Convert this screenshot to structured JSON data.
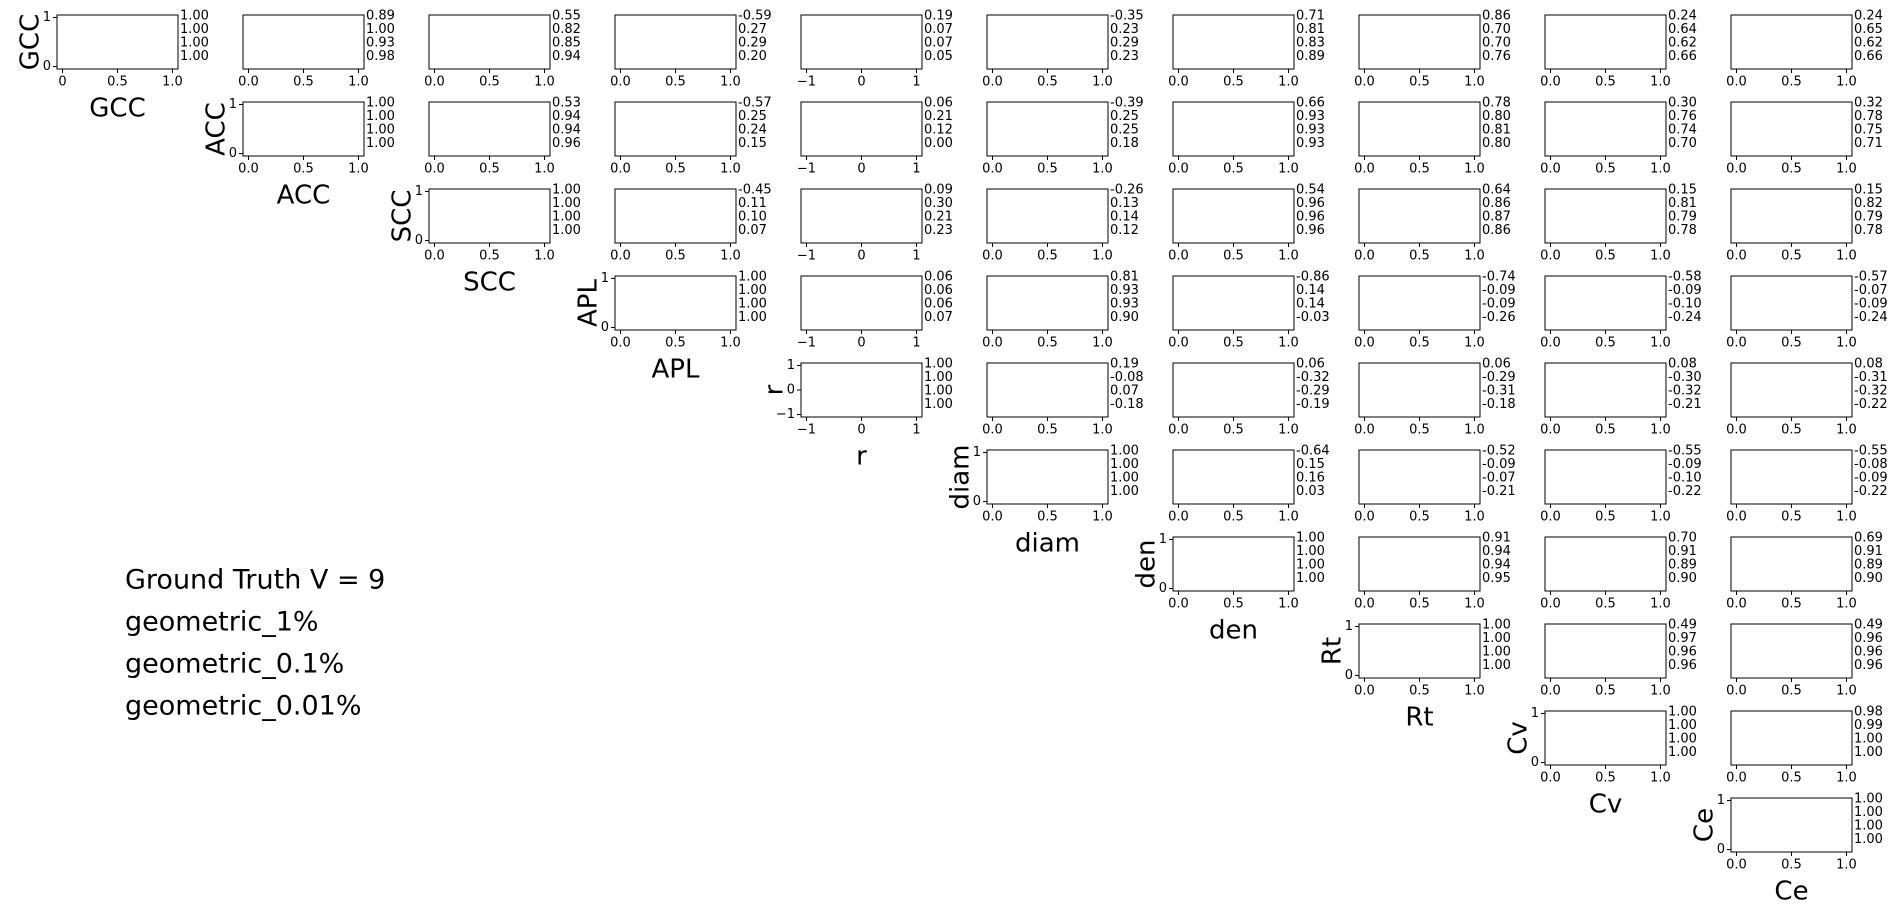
{
  "chart_data": {
    "type": "scatter_matrix",
    "series": [
      {
        "name": "Ground Truth V = 9",
        "color": "#0000ff"
      },
      {
        "name": "geometric_1%",
        "color": "#ff0000"
      },
      {
        "name": "geometric_0.1%",
        "color": "#008000"
      },
      {
        "name": "geometric_0.01%",
        "color": "#00bfbf"
      }
    ],
    "variables": [
      {
        "name": "GCC",
        "lim": [
          -0.05,
          1.05
        ],
        "xticks": [
          0,
          0.5,
          {
            "value": 1,
            "label": "1.0"
          }
        ],
        "yticks": [
          0,
          1
        ],
        "correlations": [
          {
            "values": [
              1,
              1,
              1,
              1
            ],
            "value_labels": [
              "1.00",
              "1.00",
              "1.00",
              "1.00"
            ]
          },
          {
            "values": [
              0.89,
              1,
              0.93,
              0.98
            ],
            "value_labels": [
              "0.89",
              "1.00",
              "0.93",
              "0.98"
            ]
          },
          {
            "values": [
              0.55,
              0.82,
              0.85,
              0.94
            ],
            "value_labels": [
              "0.55",
              "0.82",
              "0.85",
              "0.94"
            ]
          },
          {
            "values": [
              -0.59,
              0.27,
              0.29,
              0.2
            ],
            "value_labels": [
              "-0.59",
              "0.27",
              "0.29",
              "0.20"
            ]
          },
          {
            "values": [
              0.19,
              0.07,
              0.07,
              0.05
            ],
            "value_labels": [
              "0.19",
              "0.07",
              "0.07",
              "0.05"
            ]
          },
          {
            "values": [
              -0.35,
              0.23,
              0.29,
              0.23
            ],
            "value_labels": [
              "-0.35",
              "0.23",
              "0.29",
              "0.23"
            ]
          },
          {
            "values": [
              0.71,
              0.81,
              0.83,
              0.89
            ],
            "value_labels": [
              "0.71",
              "0.81",
              "0.83",
              "0.89"
            ]
          },
          {
            "values": [
              0.86,
              0.7,
              0.7,
              0.76
            ],
            "value_labels": [
              "0.86",
              "0.70",
              "0.70",
              "0.76"
            ]
          },
          {
            "values": [
              0.24,
              0.64,
              0.62,
              0.66
            ],
            "value_labels": [
              "0.24",
              "0.64",
              "0.62",
              "0.66"
            ]
          },
          {
            "values": [
              0.24,
              0.65,
              0.62,
              0.66
            ],
            "value_labels": [
              "0.24",
              "0.65",
              "0.62",
              "0.66"
            ]
          }
        ]
      },
      {
        "name": "ACC",
        "lim": [
          -0.05,
          1.05
        ],
        "xticks": [
          {
            "value": 0,
            "label": "0.0"
          },
          0.5,
          {
            "value": 1,
            "label": "1.0"
          }
        ],
        "yticks": [
          0,
          1
        ],
        "correlations": [
          {
            "values": [
              1,
              1,
              1,
              1
            ],
            "value_labels": [
              "1.00",
              "1.00",
              "1.00",
              "1.00"
            ]
          },
          {
            "values": [
              0.53,
              0.94,
              0.94,
              0.96
            ],
            "value_labels": [
              "0.53",
              "0.94",
              "0.94",
              "0.96"
            ]
          },
          {
            "values": [
              -0.57,
              0.25,
              0.24,
              0.15
            ],
            "value_labels": [
              "-0.57",
              "0.25",
              "0.24",
              "0.15"
            ]
          },
          {
            "values": [
              0.06,
              0.21,
              0.12,
              0
            ],
            "value_labels": [
              "0.06",
              "0.21",
              "0.12",
              "0.00"
            ]
          },
          {
            "values": [
              -0.39,
              0.25,
              0.25,
              0.18
            ],
            "value_labels": [
              "-0.39",
              "0.25",
              "0.25",
              "0.18"
            ]
          },
          {
            "values": [
              0.66,
              0.93,
              0.93,
              0.93
            ],
            "value_labels": [
              "0.66",
              "0.93",
              "0.93",
              "0.93"
            ]
          },
          {
            "values": [
              0.78,
              0.8,
              0.81,
              0.8
            ],
            "value_labels": [
              "0.78",
              "0.80",
              "0.81",
              "0.80"
            ]
          },
          {
            "values": [
              0.3,
              0.76,
              0.74,
              0.7
            ],
            "value_labels": [
              "0.30",
              "0.76",
              "0.74",
              "0.70"
            ]
          },
          {
            "values": [
              0.32,
              0.78,
              0.75,
              0.71
            ],
            "value_labels": [
              "0.32",
              "0.78",
              "0.75",
              "0.71"
            ]
          }
        ]
      },
      {
        "name": "SCC",
        "lim": [
          -0.05,
          1.05
        ],
        "xticks": [
          {
            "value": 0,
            "label": "0.0"
          },
          0.5,
          {
            "value": 1,
            "label": "1.0"
          }
        ],
        "yticks": [
          0,
          1
        ],
        "correlations": [
          {
            "values": [
              1,
              1,
              1,
              1
            ],
            "value_labels": [
              "1.00",
              "1.00",
              "1.00",
              "1.00"
            ]
          },
          {
            "values": [
              -0.45,
              0.11,
              0.1,
              0.07
            ],
            "value_labels": [
              "-0.45",
              "0.11",
              "0.10",
              "0.07"
            ]
          },
          {
            "values": [
              0.09,
              0.3,
              0.21,
              0.23
            ],
            "value_labels": [
              "0.09",
              "0.30",
              "0.21",
              "0.23"
            ]
          },
          {
            "values": [
              -0.26,
              0.13,
              0.14,
              0.12
            ],
            "value_labels": [
              "-0.26",
              "0.13",
              "0.14",
              "0.12"
            ]
          },
          {
            "values": [
              0.54,
              0.96,
              0.96,
              0.96
            ],
            "value_labels": [
              "0.54",
              "0.96",
              "0.96",
              "0.96"
            ]
          },
          {
            "values": [
              0.64,
              0.86,
              0.87,
              0.86
            ],
            "value_labels": [
              "0.64",
              "0.86",
              "0.87",
              "0.86"
            ]
          },
          {
            "values": [
              0.15,
              0.81,
              0.79,
              0.78
            ],
            "value_labels": [
              "0.15",
              "0.81",
              "0.79",
              "0.78"
            ]
          },
          {
            "values": [
              0.15,
              0.82,
              0.79,
              0.78
            ],
            "value_labels": [
              "0.15",
              "0.82",
              "0.79",
              "0.78"
            ]
          }
        ]
      },
      {
        "name": "APL",
        "lim": [
          -0.05,
          1.05
        ],
        "xticks": [
          {
            "value": 0,
            "label": "0.0"
          },
          0.5,
          {
            "value": 1,
            "label": "1.0"
          }
        ],
        "yticks": [
          0,
          1
        ],
        "correlations": [
          {
            "values": [
              1,
              1,
              1,
              1
            ],
            "value_labels": [
              "1.00",
              "1.00",
              "1.00",
              "1.00"
            ]
          },
          {
            "values": [
              0.06,
              0.06,
              0.06,
              0.07
            ],
            "value_labels": [
              "0.06",
              "0.06",
              "0.06",
              "0.07"
            ]
          },
          {
            "values": [
              0.81,
              0.93,
              0.93,
              0.9
            ],
            "value_labels": [
              "0.81",
              "0.93",
              "0.93",
              "0.90"
            ]
          },
          {
            "values": [
              -0.86,
              0.14,
              0.14,
              -0.03
            ],
            "value_labels": [
              "-0.86",
              "0.14",
              "0.14",
              "-0.03"
            ]
          },
          {
            "values": [
              -0.74,
              -0.09,
              -0.09,
              -0.26
            ],
            "value_labels": [
              "-0.74",
              "-0.09",
              "-0.09",
              "-0.26"
            ]
          },
          {
            "values": [
              -0.58,
              -0.09,
              -0.1,
              -0.24
            ],
            "value_labels": [
              "-0.58",
              "-0.09",
              "-0.10",
              "-0.24"
            ]
          },
          {
            "values": [
              -0.57,
              -0.07,
              -0.09,
              -0.24
            ],
            "value_labels": [
              "-0.57",
              "-0.07",
              "-0.09",
              "-0.24"
            ]
          }
        ]
      },
      {
        "name": "r",
        "lim": [
          -1.1,
          1.1
        ],
        "xticks": [
          {
            "value": -1,
            "label": "−1"
          },
          0,
          1
        ],
        "yticks": [
          {
            "value": -1,
            "label": "−1"
          },
          0,
          1
        ],
        "correlations": [
          {
            "values": [
              1,
              1,
              1,
              1
            ],
            "value_labels": [
              "1.00",
              "1.00",
              "1.00",
              "1.00"
            ]
          },
          {
            "values": [
              0.19,
              -0.08,
              0.07,
              -0.18
            ],
            "value_labels": [
              "0.19",
              "-0.08",
              "0.07",
              "-0.18"
            ]
          },
          {
            "values": [
              0.06,
              -0.32,
              -0.29,
              -0.19
            ],
            "value_labels": [
              "0.06",
              "-0.32",
              "-0.29",
              "-0.19"
            ]
          },
          {
            "values": [
              0.06,
              -0.29,
              -0.31,
              -0.18
            ],
            "value_labels": [
              "0.06",
              "-0.29",
              "-0.31",
              "-0.18"
            ]
          },
          {
            "values": [
              0.08,
              -0.3,
              -0.32,
              -0.21
            ],
            "value_labels": [
              "0.08",
              "-0.30",
              "-0.32",
              "-0.21"
            ]
          },
          {
            "values": [
              0.08,
              -0.31,
              -0.32,
              -0.22
            ],
            "value_labels": [
              "0.08",
              "-0.31",
              "-0.32",
              "-0.22"
            ]
          }
        ]
      },
      {
        "name": "diam",
        "lim": [
          -0.05,
          1.05
        ],
        "xticks": [
          {
            "value": 0,
            "label": "0.0"
          },
          0.5,
          {
            "value": 1,
            "label": "1.0"
          }
        ],
        "yticks": [
          0,
          1
        ],
        "correlations": [
          {
            "values": [
              1,
              1,
              1,
              1
            ],
            "value_labels": [
              "1.00",
              "1.00",
              "1.00",
              "1.00"
            ]
          },
          {
            "values": [
              -0.64,
              0.15,
              0.16,
              0.03
            ],
            "value_labels": [
              "-0.64",
              "0.15",
              "0.16",
              "0.03"
            ]
          },
          {
            "values": [
              -0.52,
              -0.09,
              -0.07,
              -0.21
            ],
            "value_labels": [
              "-0.52",
              "-0.09",
              "-0.07",
              "-0.21"
            ]
          },
          {
            "values": [
              -0.55,
              -0.09,
              -0.1,
              -0.22
            ],
            "value_labels": [
              "-0.55",
              "-0.09",
              "-0.10",
              "-0.22"
            ]
          },
          {
            "values": [
              -0.55,
              -0.08,
              -0.09,
              -0.22
            ],
            "value_labels": [
              "-0.55",
              "-0.08",
              "-0.09",
              "-0.22"
            ]
          }
        ]
      },
      {
        "name": "den",
        "lim": [
          -0.05,
          1.05
        ],
        "xticks": [
          {
            "value": 0,
            "label": "0.0"
          },
          0.5,
          {
            "value": 1,
            "label": "1.0"
          }
        ],
        "yticks": [
          0,
          1
        ],
        "correlations": [
          {
            "values": [
              1,
              1,
              1,
              1
            ],
            "value_labels": [
              "1.00",
              "1.00",
              "1.00",
              "1.00"
            ]
          },
          {
            "values": [
              0.91,
              0.94,
              0.94,
              0.95
            ],
            "value_labels": [
              "0.91",
              "0.94",
              "0.94",
              "0.95"
            ]
          },
          {
            "values": [
              0.7,
              0.91,
              0.89,
              0.9
            ],
            "value_labels": [
              "0.70",
              "0.91",
              "0.89",
              "0.90"
            ]
          },
          {
            "values": [
              0.69,
              0.91,
              0.89,
              0.9
            ],
            "value_labels": [
              "0.69",
              "0.91",
              "0.89",
              "0.90"
            ]
          }
        ]
      },
      {
        "name": "Rt",
        "lim": [
          -0.05,
          1.05
        ],
        "xticks": [
          {
            "value": 0,
            "label": "0.0"
          },
          0.5,
          {
            "value": 1,
            "label": "1.0"
          }
        ],
        "yticks": [
          0,
          1
        ],
        "correlations": [
          {
            "values": [
              1,
              1,
              1,
              1
            ],
            "value_labels": [
              "1.00",
              "1.00",
              "1.00",
              "1.00"
            ]
          },
          {
            "values": [
              0.49,
              0.97,
              0.96,
              0.96
            ],
            "value_labels": [
              "0.49",
              "0.97",
              "0.96",
              "0.96"
            ]
          },
          {
            "values": [
              0.49,
              0.96,
              0.96,
              0.96
            ],
            "value_labels": [
              "0.49",
              "0.96",
              "0.96",
              "0.96"
            ]
          }
        ]
      },
      {
        "name": "Cv",
        "lim": [
          -0.05,
          1.05
        ],
        "xticks": [
          {
            "value": 0,
            "label": "0.0"
          },
          0.5,
          {
            "value": 1,
            "label": "1.0"
          }
        ],
        "yticks": [
          0,
          1
        ],
        "correlations": [
          {
            "values": [
              1,
              1,
              1,
              1
            ],
            "value_labels": [
              "1.00",
              "1.00",
              "1.00",
              "1.00"
            ]
          },
          {
            "values": [
              0.98,
              0.99,
              1,
              1
            ],
            "value_labels": [
              "0.98",
              "0.99",
              "1.00",
              "1.00"
            ]
          }
        ]
      },
      {
        "name": "Ce",
        "lim": [
          -0.05,
          1.05
        ],
        "xticks": [
          {
            "value": 0,
            "label": "0.0"
          },
          0.5,
          {
            "value": 1,
            "label": "1.0"
          }
        ],
        "yticks": [
          0,
          1
        ],
        "correlations": [
          {
            "values": [
              1,
              1,
              1,
              1
            ],
            "value_labels": [
              "1.00",
              "1.00",
              "1.00",
              "1.00"
            ]
          }
        ]
      }
    ]
  }
}
